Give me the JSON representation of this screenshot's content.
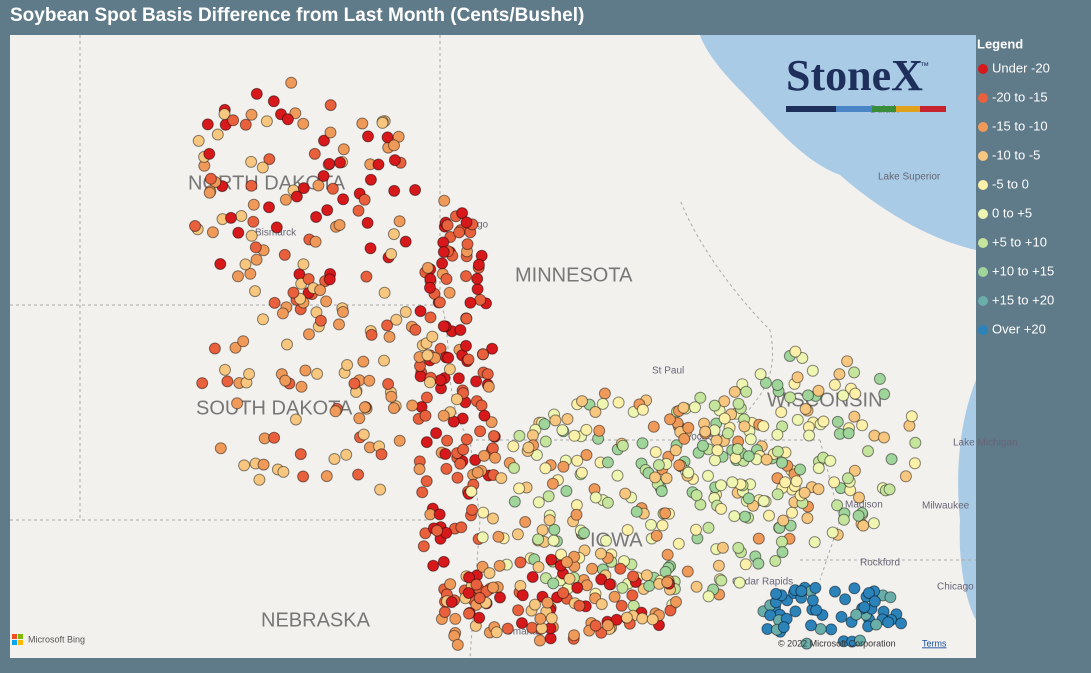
{
  "header": {
    "title": "Soybean Spot Basis Difference from Last Month (Cents/Bushel)"
  },
  "legend": {
    "title": "Legend",
    "items": [
      {
        "label": "Under -20",
        "color": "#d7191c"
      },
      {
        "label": "-20 to -15",
        "color": "#e8603c"
      },
      {
        "label": "-15 to -10",
        "color": "#f09a5a"
      },
      {
        "label": "-10 to -5",
        "color": "#f7c77f"
      },
      {
        "label": "-5 to 0",
        "color": "#fdf0a8"
      },
      {
        "label": "0 to +5",
        "color": "#eef6b2"
      },
      {
        "label": "+5 to +10",
        "color": "#c5e59c"
      },
      {
        "label": "+10 to +15",
        "color": "#9fd49a"
      },
      {
        "label": "+15 to +20",
        "color": "#6aaeaa"
      },
      {
        "label": "Over +20",
        "color": "#2b83ba"
      }
    ]
  },
  "logo": {
    "text": "StoneX",
    "mark": "™"
  },
  "map": {
    "states": [
      "NORTH DAKOTA",
      "MINNESOTA",
      "SOUTH DAKOTA",
      "WISCONSIN",
      "IOWA",
      "NEBRASKA"
    ],
    "places": [
      "Bismarck",
      "Fargo",
      "St Paul",
      "Rochester",
      "Madison",
      "Milwaukee",
      "Cedar Rapids",
      "Rockford",
      "Chicago",
      "Omaha",
      "Lake Superior",
      "Lake Michigan",
      "Duluth"
    ],
    "attribution": {
      "provider": "Microsoft Bing",
      "copyright": "© 2022 Microsoft Corporation",
      "terms": "Terms"
    }
  }
}
